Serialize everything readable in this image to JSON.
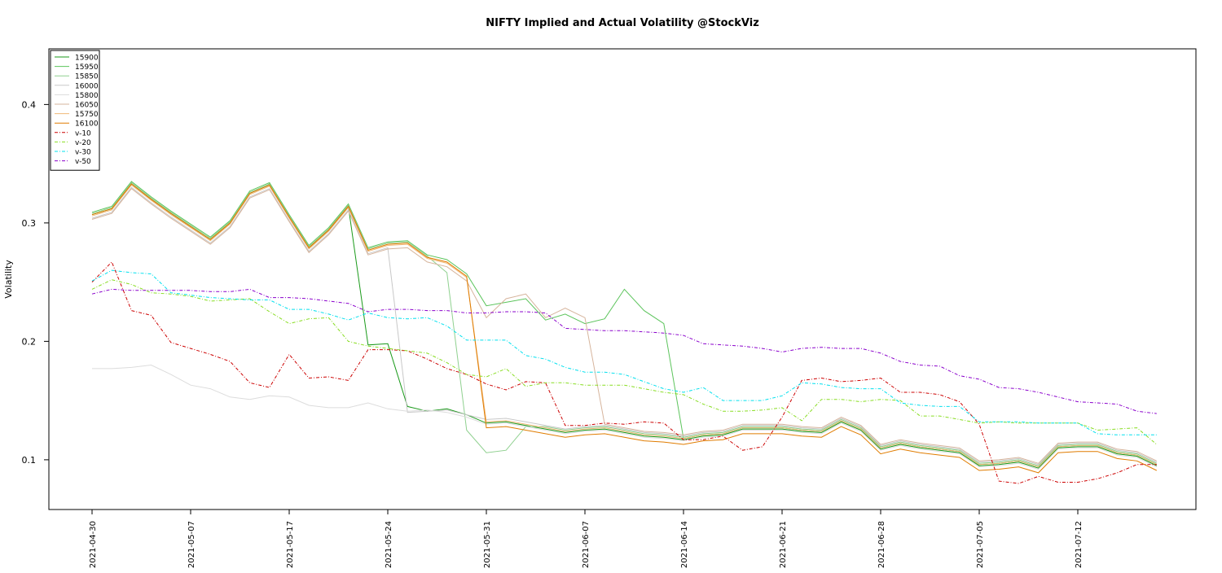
{
  "chart_data": {
    "type": "line",
    "title": "NIFTY Implied and Actual Volatility @StockViz",
    "y_label": "Volatility",
    "categories": [
      "2021-04-30",
      null,
      null,
      null,
      null,
      "2021-05-07",
      null,
      null,
      null,
      null,
      "2021-05-17",
      null,
      null,
      null,
      null,
      "2021-05-24",
      null,
      null,
      null,
      null,
      "2021-05-31",
      null,
      null,
      null,
      null,
      "2021-06-07",
      null,
      null,
      null,
      null,
      "2021-06-14",
      null,
      null,
      null,
      null,
      "2021-06-21",
      null,
      null,
      null,
      null,
      "2021-06-28",
      null,
      null,
      null,
      null,
      "2021-07-05",
      null,
      null,
      null,
      null,
      "2021-07-12",
      null,
      null,
      null,
      null
    ],
    "ylim": [
      0.058,
      0.447
    ],
    "yticks": [
      0.1,
      0.2,
      0.3,
      0.4
    ],
    "legend": "top-left",
    "series": [
      {
        "name": "15900",
        "color": "#1a9a1a",
        "linestyle": "solid",
        "values": [
          0.307,
          0.312,
          0.333,
          0.32,
          0.308,
          0.297,
          0.286,
          0.3,
          0.325,
          0.332,
          0.305,
          0.279,
          0.294,
          0.314,
          0.197,
          0.198,
          0.145,
          0.141,
          0.143,
          0.138,
          0.131,
          0.132,
          0.129,
          0.126,
          0.123,
          0.125,
          0.126,
          0.123,
          0.12,
          0.119,
          0.117,
          0.12,
          0.121,
          0.126,
          0.126,
          0.126,
          0.124,
          0.123,
          0.132,
          0.125,
          0.109,
          0.113,
          0.11,
          0.108,
          0.106,
          0.095,
          0.096,
          0.098,
          0.093,
          0.11,
          0.111,
          0.111,
          0.105,
          0.103,
          0.095
        ]
      },
      {
        "name": "15950",
        "color": "#5cc45c",
        "linestyle": "solid",
        "values": [
          0.309,
          0.314,
          0.335,
          0.322,
          0.31,
          0.299,
          0.288,
          0.302,
          0.327,
          0.334,
          0.307,
          0.281,
          0.296,
          0.316,
          0.279,
          0.284,
          0.285,
          0.273,
          0.269,
          0.257,
          0.23,
          0.233,
          0.236,
          0.218,
          0.223,
          0.215,
          0.219,
          0.244,
          0.226,
          0.215,
          0.118,
          0.121,
          0.122,
          0.127,
          0.127,
          0.127,
          0.125,
          0.124,
          0.133,
          0.126,
          0.11,
          0.114,
          0.111,
          0.109,
          0.107,
          0.096,
          0.097,
          0.099,
          0.094,
          0.111,
          0.112,
          0.112,
          0.106,
          0.104,
          0.096
        ]
      },
      {
        "name": "15850",
        "color": "#8fd08f",
        "linestyle": "solid",
        "values": [
          0.308,
          0.313,
          0.334,
          0.321,
          0.309,
          0.298,
          0.287,
          0.301,
          0.326,
          0.333,
          0.306,
          0.28,
          0.295,
          0.315,
          0.278,
          0.283,
          0.284,
          0.272,
          0.258,
          0.125,
          0.106,
          0.108,
          0.128,
          0.128,
          0.125,
          0.127,
          0.128,
          0.125,
          0.122,
          0.121,
          0.119,
          0.122,
          0.123,
          0.128,
          0.128,
          0.128,
          0.126,
          0.125,
          0.134,
          0.127,
          0.111,
          0.115,
          0.112,
          0.11,
          0.108,
          0.097,
          0.098,
          0.1,
          0.095,
          0.112,
          0.113,
          0.113,
          0.107,
          0.105,
          0.097
        ]
      },
      {
        "name": "16000",
        "color": "#c8c8c8",
        "linestyle": "solid",
        "values": [
          0.304,
          0.309,
          0.33,
          0.317,
          0.305,
          0.294,
          0.283,
          0.297,
          0.322,
          0.329,
          0.302,
          0.276,
          0.291,
          0.311,
          0.274,
          0.279,
          0.14,
          0.141,
          0.142,
          0.138,
          0.134,
          0.135,
          0.132,
          0.129,
          0.126,
          0.128,
          0.129,
          0.126,
          0.123,
          0.122,
          0.12,
          0.123,
          0.124,
          0.129,
          0.129,
          0.129,
          0.127,
          0.126,
          0.135,
          0.128,
          0.112,
          0.116,
          0.113,
          0.111,
          0.109,
          0.098,
          0.099,
          0.101,
          0.096,
          0.113,
          0.114,
          0.114,
          0.108,
          0.106,
          0.098
        ]
      },
      {
        "name": "15800",
        "color": "#dcdcdc",
        "linestyle": "solid",
        "values": [
          0.177,
          0.177,
          0.178,
          0.18,
          0.172,
          0.163,
          0.16,
          0.153,
          0.151,
          0.154,
          0.153,
          0.146,
          0.144,
          0.144,
          0.148,
          0.143,
          0.141,
          0.142,
          0.14,
          0.136,
          0.13,
          0.131,
          0.128,
          0.125,
          0.122,
          0.124,
          0.125,
          0.122,
          0.119,
          0.118,
          0.116,
          0.119,
          0.12,
          0.125,
          0.125,
          0.125,
          0.123,
          0.122,
          0.131,
          0.124,
          0.108,
          0.112,
          0.109,
          0.107,
          0.105,
          0.094,
          0.095,
          0.097,
          0.092,
          0.109,
          0.11,
          0.11,
          0.104,
          0.102,
          0.094
        ]
      },
      {
        "name": "16050",
        "color": "#d6b49c",
        "linestyle": "solid",
        "values": [
          0.303,
          0.308,
          0.329,
          0.316,
          0.304,
          0.293,
          0.282,
          0.296,
          0.321,
          0.328,
          0.301,
          0.275,
          0.29,
          0.31,
          0.273,
          0.278,
          0.279,
          0.267,
          0.263,
          0.251,
          0.22,
          0.236,
          0.24,
          0.22,
          0.228,
          0.22,
          0.13,
          0.127,
          0.124,
          0.123,
          0.121,
          0.124,
          0.125,
          0.13,
          0.13,
          0.13,
          0.128,
          0.127,
          0.136,
          0.129,
          0.113,
          0.117,
          0.114,
          0.112,
          0.11,
          0.099,
          0.1,
          0.102,
          0.097,
          0.114,
          0.115,
          0.115,
          0.109,
          0.107,
          0.099
        ]
      },
      {
        "name": "15750",
        "color": "#f0b878",
        "linestyle": "solid",
        "values": [
          0.306,
          0.311,
          0.332,
          0.319,
          0.307,
          0.296,
          0.285,
          0.299,
          0.324,
          0.331,
          0.304,
          0.278,
          0.293,
          0.313,
          0.276,
          0.281,
          0.282,
          0.27,
          0.266,
          0.254,
          0.132,
          0.133,
          0.13,
          0.127,
          0.124,
          0.126,
          0.127,
          0.124,
          0.121,
          0.12,
          0.118,
          0.121,
          0.122,
          0.127,
          0.127,
          0.127,
          0.125,
          0.124,
          0.133,
          0.126,
          0.11,
          0.114,
          0.111,
          0.109,
          0.107,
          0.096,
          0.097,
          0.099,
          0.094,
          0.111,
          0.112,
          0.112,
          0.106,
          0.104,
          0.096
        ]
      },
      {
        "name": "16100",
        "color": "#e07c00",
        "linestyle": "solid",
        "values": [
          0.307,
          0.312,
          0.333,
          0.32,
          0.308,
          0.297,
          0.286,
          0.3,
          0.325,
          0.332,
          0.305,
          0.279,
          0.294,
          0.314,
          0.277,
          0.282,
          0.283,
          0.271,
          0.267,
          0.255,
          0.127,
          0.128,
          0.125,
          0.122,
          0.119,
          0.121,
          0.122,
          0.119,
          0.116,
          0.115,
          0.113,
          0.116,
          0.117,
          0.122,
          0.122,
          0.122,
          0.12,
          0.119,
          0.128,
          0.121,
          0.105,
          0.109,
          0.106,
          0.104,
          0.102,
          0.091,
          0.092,
          0.094,
          0.089,
          0.106,
          0.107,
          0.107,
          0.101,
          0.099,
          0.091
        ]
      },
      {
        "name": "v-10",
        "color": "#cc0000",
        "linestyle": "dashed",
        "values": [
          0.25,
          0.267,
          0.226,
          0.222,
          0.199,
          0.194,
          0.189,
          0.183,
          0.165,
          0.161,
          0.189,
          0.169,
          0.17,
          0.167,
          0.193,
          0.193,
          0.192,
          0.185,
          0.177,
          0.172,
          0.164,
          0.159,
          0.166,
          0.165,
          0.129,
          0.129,
          0.131,
          0.13,
          0.132,
          0.131,
          0.117,
          0.117,
          0.12,
          0.108,
          0.111,
          0.136,
          0.167,
          0.169,
          0.166,
          0.167,
          0.169,
          0.157,
          0.157,
          0.155,
          0.149,
          0.13,
          0.082,
          0.08,
          0.086,
          0.081,
          0.081,
          0.084,
          0.089,
          0.096,
          0.096
        ]
      },
      {
        "name": "v-20",
        "color": "#88dd22",
        "linestyle": "dashed",
        "values": [
          0.244,
          0.252,
          0.248,
          0.241,
          0.24,
          0.238,
          0.234,
          0.235,
          0.236,
          0.225,
          0.215,
          0.219,
          0.22,
          0.2,
          0.196,
          0.194,
          0.192,
          0.19,
          0.182,
          0.172,
          0.17,
          0.177,
          0.162,
          0.165,
          0.165,
          0.163,
          0.163,
          0.163,
          0.16,
          0.157,
          0.155,
          0.147,
          0.141,
          0.141,
          0.142,
          0.144,
          0.133,
          0.151,
          0.151,
          0.149,
          0.151,
          0.15,
          0.137,
          0.137,
          0.134,
          0.131,
          0.132,
          0.131,
          0.131,
          0.131,
          0.131,
          0.125,
          0.126,
          0.127,
          0.113
        ]
      },
      {
        "name": "v-30",
        "color": "#00e0ee",
        "linestyle": "dashed",
        "values": [
          0.251,
          0.26,
          0.258,
          0.257,
          0.241,
          0.239,
          0.237,
          0.236,
          0.235,
          0.235,
          0.227,
          0.227,
          0.223,
          0.218,
          0.224,
          0.22,
          0.219,
          0.22,
          0.213,
          0.201,
          0.201,
          0.201,
          0.188,
          0.185,
          0.178,
          0.174,
          0.174,
          0.172,
          0.166,
          0.16,
          0.157,
          0.161,
          0.15,
          0.15,
          0.15,
          0.154,
          0.165,
          0.164,
          0.161,
          0.16,
          0.16,
          0.148,
          0.146,
          0.145,
          0.145,
          0.132,
          0.132,
          0.132,
          0.131,
          0.131,
          0.131,
          0.122,
          0.121,
          0.121,
          0.121
        ]
      },
      {
        "name": "v-50",
        "color": "#8a00cc",
        "linestyle": "dashed",
        "values": [
          0.24,
          0.244,
          0.243,
          0.243,
          0.243,
          0.243,
          0.242,
          0.242,
          0.244,
          0.237,
          0.237,
          0.236,
          0.234,
          0.232,
          0.225,
          0.227,
          0.227,
          0.226,
          0.226,
          0.224,
          0.224,
          0.225,
          0.225,
          0.224,
          0.211,
          0.21,
          0.209,
          0.209,
          0.208,
          0.207,
          0.205,
          0.198,
          0.197,
          0.196,
          0.194,
          0.191,
          0.194,
          0.195,
          0.194,
          0.194,
          0.19,
          0.183,
          0.18,
          0.179,
          0.171,
          0.168,
          0.161,
          0.16,
          0.157,
          0.153,
          0.149,
          0.148,
          0.147,
          0.141,
          0.139
        ]
      }
    ]
  }
}
